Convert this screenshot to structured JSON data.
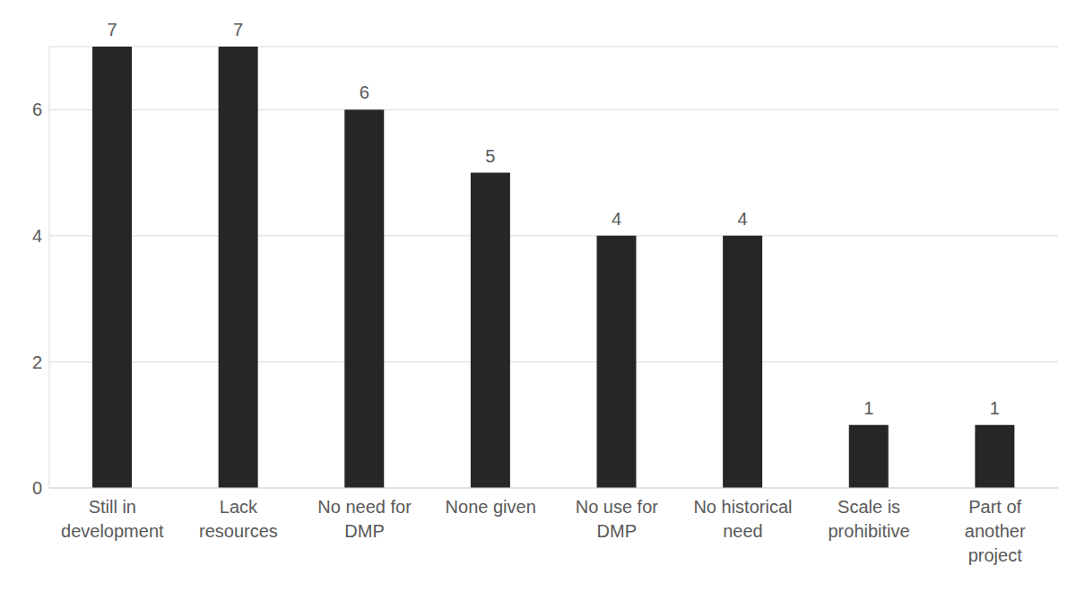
{
  "chart_data": {
    "type": "bar",
    "categories": [
      "Still in development",
      "Lack resources",
      "No need for DMP",
      "None given",
      "No use for DMP",
      "No historical need",
      "Scale is prohibitive",
      "Part of another project"
    ],
    "values": [
      7,
      7,
      6,
      5,
      4,
      4,
      1,
      1
    ],
    "color": "#262626",
    "ylim": [
      0,
      7
    ],
    "yticks": [
      0,
      2,
      4,
      6
    ],
    "grid": true,
    "data_labels": true
  }
}
